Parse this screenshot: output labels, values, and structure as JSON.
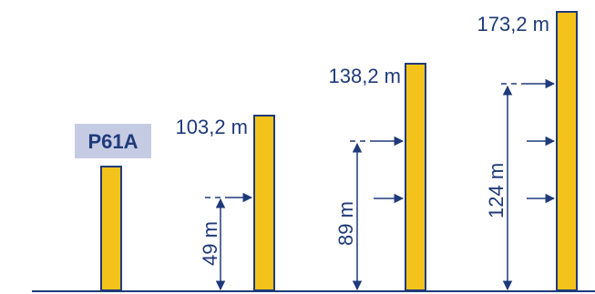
{
  "colors": {
    "pillar": "#f3c31b",
    "line": "#1f3a7a",
    "badge_bg": "#c6cbe4"
  },
  "icons": {
    "arrow": "right-arrow-icon"
  },
  "diagram": {
    "model_badge": "P61A",
    "columns": [
      {
        "total_label": "",
        "span_label": "",
        "arrow_count": 0
      },
      {
        "total_label": "103,2 m",
        "span_label": "49 m",
        "arrow_count": 1
      },
      {
        "total_label": "138,2 m",
        "span_label": "89 m",
        "arrow_count": 2
      },
      {
        "total_label": "173,2 m",
        "span_label": "124 m",
        "arrow_count": 3
      }
    ]
  }
}
